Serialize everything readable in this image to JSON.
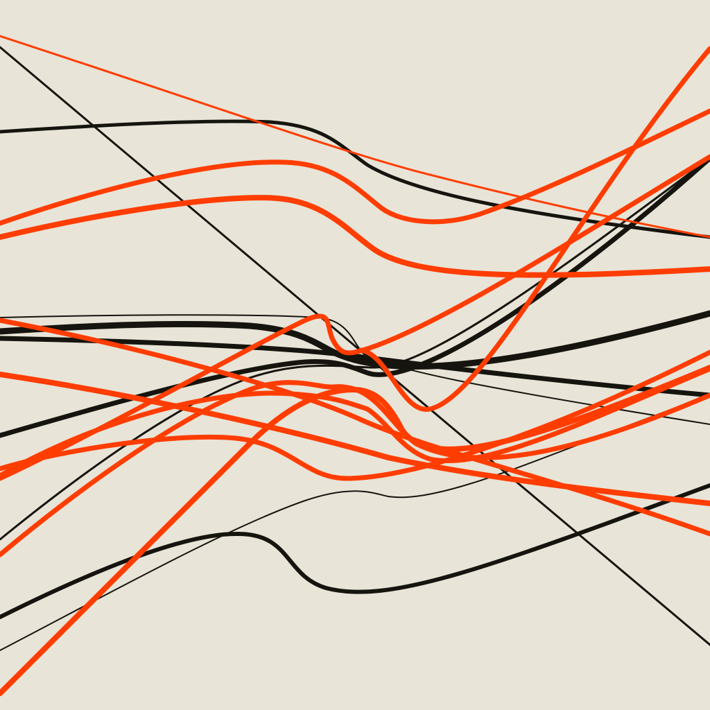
{
  "artwork": {
    "background_color": "#e8e4d8",
    "ink_color": "#16140e",
    "accent_color": "#ff3d00",
    "line_count": 19,
    "style": "generative flowing lines"
  }
}
